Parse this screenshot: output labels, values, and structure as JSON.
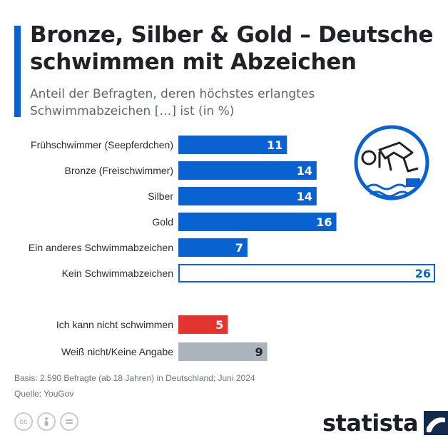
{
  "header": {
    "title": "Bronze, Silber & Gold – Deutsche schwimmen mit Abzeichen",
    "subtitle": "Anteil der Befragten, deren höchstes erlangtes Schwimmabzeichen […] ist (in %)"
  },
  "colors": {
    "accent": "#0a62d0",
    "bar": "#0a62d0",
    "highlight_outline": "#0a62d0",
    "cannot_swim": "#e3342f",
    "unknown": "#a9b4bc"
  },
  "icons": [
    "diver-icon",
    "cc-icon",
    "by-icon",
    "nd-icon",
    "statista-logo-icon"
  ],
  "chart_data": {
    "type": "bar",
    "orientation": "horizontal",
    "categories": [
      "Frühschwimmer (Seepferdchen)",
      "Bronze (Freischwimmer)",
      "Silber",
      "Gold",
      "Ein anderes Schwimmabzeichen",
      "Kein Schwimmabzeichen",
      "Ich kann nicht schwimmen",
      "Weiß nicht/Keine Angabe"
    ],
    "values": [
      11,
      14,
      14,
      16,
      7,
      26,
      5,
      9
    ],
    "bar_styles": [
      "filled",
      "filled",
      "filled",
      "filled",
      "filled",
      "outlined",
      "red",
      "gray"
    ],
    "xlim": [
      0,
      26
    ],
    "grid": false,
    "legend": "none"
  },
  "footer": {
    "basis": "Basis: 2.590 Befragte (ab 18 Jahren) in Deutschland; Juni 2024",
    "source": "Quelle: YouGov",
    "brand": "statista"
  }
}
